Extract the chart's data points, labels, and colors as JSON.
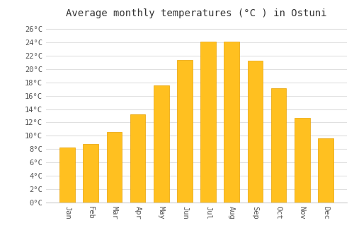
{
  "title": "Average monthly temperatures (°C ) in Ostuni",
  "months": [
    "Jan",
    "Feb",
    "Mar",
    "Apr",
    "May",
    "Jun",
    "Jul",
    "Aug",
    "Sep",
    "Oct",
    "Nov",
    "Dec"
  ],
  "temperatures": [
    8.2,
    8.8,
    10.6,
    13.2,
    17.5,
    21.3,
    24.1,
    24.1,
    21.2,
    17.1,
    12.7,
    9.6
  ],
  "bar_color": "#FFC020",
  "bar_edge_color": "#E8A000",
  "background_color": "#FFFFFF",
  "grid_color": "#E0E0E0",
  "title_fontsize": 10,
  "tick_label_fontsize": 7.5,
  "ylim": [
    0,
    27
  ],
  "yticks": [
    0,
    2,
    4,
    6,
    8,
    10,
    12,
    14,
    16,
    18,
    20,
    22,
    24,
    26
  ]
}
